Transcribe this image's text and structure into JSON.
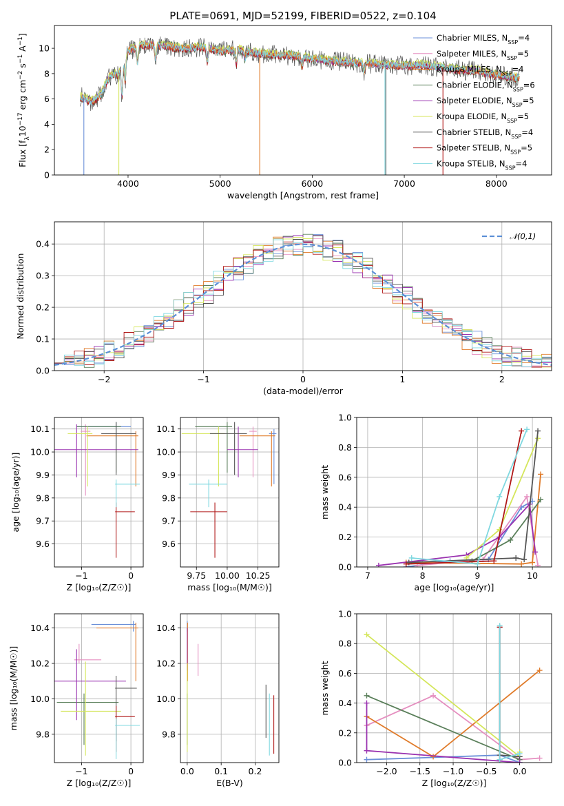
{
  "chart_data": [
    {
      "type": "line",
      "title": "PLATE=0691, MJD=52199, FIBERID=0522, z=0.104",
      "xlabel": "wavelength [Angstrom, rest frame]",
      "ylabel": "Flux [f_λ 10^-17 erg cm^-2 s^-1 A^-1]",
      "xlim": [
        3200,
        8600
      ],
      "ylim": [
        0,
        11.8
      ],
      "xticks": [
        4000,
        5000,
        6000,
        7000,
        8000
      ],
      "yticks": [
        0,
        2,
        4,
        6,
        8,
        10
      ],
      "grid": false,
      "legend": "top-right",
      "series": [
        {
          "name": "Chabrier MILES, N_SSP=4",
          "color": "#6a8fd8"
        },
        {
          "name": "Salpeter MILES, N_SSP=5",
          "color": "#e58fc0"
        },
        {
          "name": "Kroupa MILES, N_SSP=4",
          "color": "#e07b2a"
        },
        {
          "name": "Chabrier ELODIE, N_SSP=6",
          "color": "#5a7f5a"
        },
        {
          "name": "Salpeter ELODIE, N_SSP=5",
          "color": "#9a32b0"
        },
        {
          "name": "Kroupa ELODIE, N_SSP=5",
          "color": "#d4e65a"
        },
        {
          "name": "Chabrier STELIB, N_SSP=4",
          "color": "#555555"
        },
        {
          "name": "Salpeter STELIB, N_SSP=5",
          "color": "#b01818"
        },
        {
          "name": "Kroupa STELIB, N_SSP=4",
          "color": "#7fd8e0"
        }
      ],
      "data_profile": {
        "x": [
          3480,
          3600,
          3700,
          3800,
          3900,
          3960,
          4000,
          4100,
          4200,
          4400,
          4600,
          4800,
          5000,
          5200,
          5400,
          5600,
          5800,
          6000,
          6200,
          6400,
          6600,
          6800,
          7000,
          7200,
          7400,
          7600,
          7800,
          8000,
          8200
        ],
        "y": [
          6.2,
          5.8,
          6.3,
          7.8,
          8.0,
          9.1,
          9.8,
          10.1,
          10.3,
          10.2,
          10.0,
          10.1,
          9.8,
          9.9,
          9.6,
          9.5,
          9.4,
          9.2,
          9.0,
          8.9,
          8.8,
          8.7,
          8.6,
          8.7,
          8.5,
          8.3,
          8.2,
          7.9,
          7.7
        ]
      }
    },
    {
      "type": "histogram",
      "xlabel": "(data-model)/error",
      "ylabel": "Normed distribution",
      "xlim": [
        -2.5,
        2.5
      ],
      "ylim": [
        0,
        0.47
      ],
      "xticks": [
        -2,
        -1,
        0,
        1,
        2
      ],
      "yticks": [
        0.0,
        0.1,
        0.2,
        0.3,
        0.4
      ],
      "grid": true,
      "legend": "top-right",
      "legend_entry": "𝒩(0,1)",
      "bin_width": 0.1,
      "bins_start": -2.5
    },
    {
      "type": "errorbar",
      "xlabel": "Z [log₁₀(Z/Z☉)]",
      "ylabel": "age  [log₁₀(age/yr)]",
      "xlim": [
        -1.55,
        0.25
      ],
      "ylim": [
        9.5,
        10.15
      ],
      "xticks": [
        -1,
        0
      ],
      "yticks": [
        9.6,
        9.7,
        9.8,
        9.9,
        10.0,
        10.1
      ],
      "grid": true,
      "points": [
        {
          "x": -0.3,
          "y": 10.11,
          "xerr": [
            0.8,
            0.3
          ],
          "yerr": [
            0.1,
            0.02
          ],
          "series": "Chabrier MILES"
        },
        {
          "x": -0.92,
          "y": 10.09,
          "xerr": [
            0.1,
            0.1
          ],
          "yerr": [
            0.28,
            0.03
          ],
          "series": "Salpeter MILES"
        },
        {
          "x": 0.1,
          "y": 10.07,
          "xerr": [
            1.0,
            0.05
          ],
          "yerr": [
            0.22,
            0.02
          ],
          "series": "Kroupa MILES"
        },
        {
          "x": -0.3,
          "y": 10.11,
          "xerr": [
            0.8,
            0.1
          ],
          "yerr": [
            0.2,
            0.02
          ],
          "series": "Chabrier ELODIE"
        },
        {
          "x": -1.1,
          "y": 10.01,
          "xerr": [
            0.45,
            1.25
          ],
          "yerr": [
            0.12,
            0.11
          ],
          "series": "Salpeter ELODIE"
        },
        {
          "x": -0.88,
          "y": 10.08,
          "xerr": [
            0.4,
            0.1
          ],
          "yerr": [
            0.23,
            0.03
          ],
          "series": "Kroupa ELODIE"
        },
        {
          "x": -0.3,
          "y": 10.08,
          "xerr": [
            0.3,
            0.4
          ],
          "yerr": [
            0.18,
            0.05
          ],
          "series": "Chabrier STELIB"
        },
        {
          "x": -0.3,
          "y": 9.74,
          "xerr": [
            0.02,
            0.38
          ],
          "yerr": [
            0.2,
            0.04
          ],
          "series": "Salpeter STELIB"
        },
        {
          "x": -0.3,
          "y": 9.86,
          "xerr": [
            0.02,
            0.48
          ],
          "yerr": [
            0.1,
            0.02
          ],
          "series": "Kroupa STELIB"
        }
      ]
    },
    {
      "type": "errorbar",
      "xlabel": "mass [log₁₀(M/M☉)]",
      "xlim": [
        9.62,
        10.42
      ],
      "ylim": [
        9.5,
        10.15
      ],
      "xticks": [
        9.75,
        10.0,
        10.25
      ],
      "yticks": [
        9.6,
        9.7,
        9.8,
        9.9,
        10.0,
        10.1
      ],
      "grid": true,
      "points": [
        {
          "x": 10.38,
          "y": 10.08,
          "xerr": [
            0.04,
            0.02
          ],
          "yerr": [
            0.22,
            0.02
          ],
          "series": "Chabrier MILES"
        },
        {
          "x": 10.21,
          "y": 10.09,
          "xerr": [
            0.03,
            0.03
          ],
          "yerr": [
            0.2,
            0.02
          ],
          "series": "Salpeter MILES"
        },
        {
          "x": 10.36,
          "y": 10.07,
          "xerr": [
            0.26,
            0.03
          ],
          "yerr": [
            0.22,
            0.02
          ],
          "series": "Kroupa MILES"
        },
        {
          "x": 10.0,
          "y": 10.11,
          "xerr": [
            0.26,
            0.04
          ],
          "yerr": [
            0.2,
            0.02
          ],
          "series": "Chabrier ELODIE"
        },
        {
          "x": 10.09,
          "y": 10.01,
          "xerr": [
            0.09,
            0.16
          ],
          "yerr": [
            0.12,
            0.1
          ],
          "series": "Salpeter ELODIE"
        },
        {
          "x": 9.93,
          "y": 10.08,
          "xerr": [
            0.3,
            0.05
          ],
          "yerr": [
            0.23,
            0.03
          ],
          "series": "Kroupa ELODIE"
        },
        {
          "x": 10.06,
          "y": 10.08,
          "xerr": [
            0.2,
            0.1
          ],
          "yerr": [
            0.18,
            0.05
          ],
          "series": "Chabrier STELIB"
        },
        {
          "x": 9.9,
          "y": 9.74,
          "xerr": [
            0.2,
            0.1
          ],
          "yerr": [
            0.2,
            0.04
          ],
          "series": "Salpeter STELIB"
        },
        {
          "x": 9.85,
          "y": 9.86,
          "xerr": [
            0.16,
            0.15
          ],
          "yerr": [
            0.1,
            0.02
          ],
          "series": "Kroupa STELIB"
        }
      ]
    },
    {
      "type": "line",
      "xlabel": "age  [log₁₀(age/yr)]",
      "ylabel": "mass weight",
      "xlim": [
        6.8,
        10.35
      ],
      "ylim": [
        0,
        1.0
      ],
      "xticks": [
        7,
        8,
        9,
        10
      ],
      "yticks": [
        0.0,
        0.2,
        0.4,
        0.6,
        0.8,
        1.0
      ],
      "grid": true,
      "series": [
        {
          "name": "Chabrier MILES",
          "x": [
            7.7,
            8.5,
            9.2,
            9.8,
            10.0
          ],
          "y": [
            0.0,
            0.04,
            0.05,
            0.4,
            0.44
          ]
        },
        {
          "name": "Salpeter MILES",
          "x": [
            7.9,
            9.1,
            9.9,
            10.1
          ],
          "y": [
            0.01,
            0.05,
            0.47,
            0.01
          ]
        },
        {
          "name": "Kroupa MILES",
          "x": [
            7.7,
            9.8,
            10.0,
            10.15
          ],
          "y": [
            0.03,
            0.02,
            0.03,
            0.62
          ]
        },
        {
          "name": "Chabrier ELODIE",
          "x": [
            8.9,
            9.6,
            10.15
          ],
          "y": [
            0.04,
            0.18,
            0.45
          ]
        },
        {
          "name": "Salpeter ELODIE",
          "x": [
            7.2,
            8.8,
            9.4,
            9.95,
            10.05
          ],
          "y": [
            0.01,
            0.08,
            0.2,
            0.42,
            0.1
          ]
        },
        {
          "name": "Kroupa ELODIE",
          "x": [
            8.8,
            9.4,
            10.1
          ],
          "y": [
            0.06,
            0.25,
            0.86
          ]
        },
        {
          "name": "Chabrier STELIB",
          "x": [
            7.75,
            9.7,
            9.85,
            10.1
          ],
          "y": [
            0.03,
            0.06,
            0.05,
            0.91
          ]
        },
        {
          "name": "Salpeter STELIB",
          "x": [
            7.7,
            9.3,
            9.8
          ],
          "y": [
            0.02,
            0.04,
            0.91
          ]
        },
        {
          "name": "Kroupa STELIB",
          "x": [
            7.8,
            9.0,
            9.4,
            9.9
          ],
          "y": [
            0.06,
            0.02,
            0.47,
            0.92
          ]
        }
      ]
    },
    {
      "type": "errorbar",
      "xlabel": "Z [log₁₀(Z/Z☉)]",
      "ylabel": "mass [log₁₀(M/M☉)]",
      "xlim": [
        -1.55,
        0.25
      ],
      "ylim": [
        9.64,
        10.48
      ],
      "xticks": [
        -1,
        0
      ],
      "yticks": [
        9.8,
        10.0,
        10.2,
        10.4
      ],
      "grid": true,
      "points": [
        {
          "x": 0.05,
          "y": 10.42,
          "xerr": [
            0.85,
            0.05
          ],
          "yerr": [
            0.04,
            0.02
          ],
          "series": "Chabrier MILES"
        },
        {
          "x": -1.05,
          "y": 10.22,
          "xerr": [
            0.1,
            0.45
          ],
          "yerr": [
            0.02,
            0.09
          ],
          "series": "Salpeter MILES"
        },
        {
          "x": 0.1,
          "y": 10.4,
          "xerr": [
            0.8,
            0.05
          ],
          "yerr": [
            0.3,
            0.03
          ],
          "series": "Kroupa MILES"
        },
        {
          "x": -0.95,
          "y": 9.98,
          "xerr": [
            0.55,
            0.7
          ],
          "yerr": [
            0.24,
            0.05
          ],
          "series": "Chabrier ELODIE"
        },
        {
          "x": -1.1,
          "y": 10.1,
          "xerr": [
            0.45,
            1.0
          ],
          "yerr": [
            0.22,
            0.18
          ],
          "series": "Salpeter ELODIE"
        },
        {
          "x": -0.92,
          "y": 9.93,
          "xerr": [
            0.5,
            0.72
          ],
          "yerr": [
            0.25,
            0.28
          ],
          "series": "Kroupa ELODIE"
        },
        {
          "x": -0.3,
          "y": 10.06,
          "xerr": [
            0.02,
            0.42
          ],
          "yerr": [
            0.3,
            0.07
          ],
          "series": "Chabrier STELIB"
        },
        {
          "x": -0.3,
          "y": 9.9,
          "xerr": [
            0.02,
            0.38
          ],
          "yerr": [
            0.2,
            0.06
          ],
          "series": "Salpeter STELIB"
        },
        {
          "x": -0.3,
          "y": 9.85,
          "xerr": [
            0.02,
            0.48
          ],
          "yerr": [
            0.19,
            0.04
          ],
          "series": "Kroupa STELIB"
        }
      ]
    },
    {
      "type": "errorbar",
      "xlabel": "E(B-V)",
      "xlim": [
        -0.02,
        0.27
      ],
      "ylim": [
        9.64,
        10.48
      ],
      "xticks": [
        0.0,
        0.1,
        0.2
      ],
      "yticks": [
        9.8,
        10.0,
        10.2,
        10.4
      ],
      "grid": true,
      "points": [
        {
          "x": 0.0,
          "y": 10.42,
          "xerr": [
            0.0,
            0.0
          ],
          "yerr": [
            0.04,
            0.02
          ],
          "series": "Chabrier MILES"
        },
        {
          "x": 0.032,
          "y": 10.22,
          "xerr": [
            0.0,
            0.0
          ],
          "yerr": [
            0.09,
            0.09
          ],
          "series": "Salpeter MILES"
        },
        {
          "x": 0.001,
          "y": 10.4,
          "xerr": [
            0.0,
            0.0
          ],
          "yerr": [
            0.3,
            0.03
          ],
          "series": "Kroupa MILES"
        },
        {
          "x": 0.0,
          "y": 9.98,
          "xerr": [
            0.0,
            0.0
          ],
          "yerr": [
            0.24,
            0.05
          ],
          "series": "Chabrier ELODIE"
        },
        {
          "x": 0.0,
          "y": 10.3,
          "xerr": [
            0.0,
            0.0
          ],
          "yerr": [
            0.14,
            0.1
          ],
          "series": "Salpeter ELODIE"
        },
        {
          "x": 0.0,
          "y": 9.9,
          "xerr": [
            0.0,
            0.0
          ],
          "yerr": [
            0.2,
            0.3
          ],
          "series": "Kroupa ELODIE"
        },
        {
          "x": 0.232,
          "y": 9.92,
          "xerr": [
            0.0,
            0.0
          ],
          "yerr": [
            0.14,
            0.16
          ],
          "series": "Chabrier STELIB"
        },
        {
          "x": 0.255,
          "y": 9.86,
          "xerr": [
            0.0,
            0.0
          ],
          "yerr": [
            0.17,
            0.16
          ],
          "series": "Salpeter STELIB"
        },
        {
          "x": 0.242,
          "y": 9.85,
          "xerr": [
            0.0,
            0.0
          ],
          "yerr": [
            0.17,
            0.18
          ],
          "series": "Kroupa STELIB"
        }
      ]
    },
    {
      "type": "line",
      "xlabel": "Z [log₁₀(Z/Z☉)]",
      "ylabel": "mass weight",
      "xlim": [
        -2.45,
        0.48
      ],
      "ylim": [
        0,
        1.0
      ],
      "xticks": [
        -2.0,
        -1.5,
        -1.0,
        -0.5,
        0.0
      ],
      "yticks": [
        0.0,
        0.2,
        0.4,
        0.6,
        0.8,
        1.0
      ],
      "grid": true,
      "series": [
        {
          "name": "Chabrier MILES",
          "x": [
            -2.3,
            -0.3,
            0.0
          ],
          "y": [
            0.02,
            0.05,
            0.0
          ]
        },
        {
          "name": "Salpeter MILES",
          "x": [
            -2.3,
            -1.3,
            0.0,
            0.3
          ],
          "y": [
            0.25,
            0.45,
            0.02,
            0.03
          ]
        },
        {
          "name": "Kroupa MILES",
          "x": [
            -2.3,
            -1.3,
            0.3
          ],
          "y": [
            0.31,
            0.04,
            0.62
          ]
        },
        {
          "name": "Chabrier ELODIE",
          "x": [
            -2.3,
            0.0
          ],
          "y": [
            0.45,
            0.02
          ]
        },
        {
          "name": "Salpeter ELODIE",
          "x": [
            -2.3,
            -2.3,
            0.0,
            0.0
          ],
          "y": [
            0.4,
            0.08,
            0.0,
            0.04
          ]
        },
        {
          "name": "Kroupa ELODIE",
          "x": [
            -2.3,
            0.0,
            0.0
          ],
          "y": [
            0.86,
            0.04,
            0.07
          ]
        },
        {
          "name": "Chabrier STELIB",
          "x": [
            -0.3,
            -0.3,
            0.0
          ],
          "y": [
            0.91,
            0.05,
            0.04
          ]
        },
        {
          "name": "Salpeter STELIB",
          "x": [
            -0.3,
            -0.3
          ],
          "y": [
            0.91,
            0.02
          ]
        },
        {
          "name": "Kroupa STELIB",
          "x": [
            -0.3,
            -0.3,
            0.0
          ],
          "y": [
            0.92,
            0.02,
            0.06
          ]
        }
      ]
    }
  ]
}
